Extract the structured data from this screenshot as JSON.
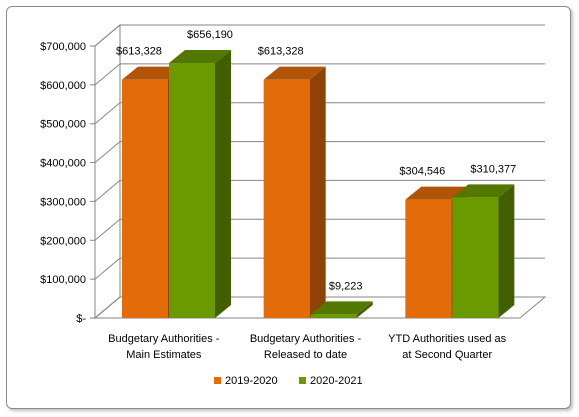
{
  "chart_data": {
    "type": "bar",
    "title": "",
    "xlabel": "",
    "ylabel": "",
    "ylim": [
      0,
      700000
    ],
    "y_ticks": [
      "$-",
      "$100,000",
      "$200,000",
      "$300,000",
      "$400,000",
      "$500,000",
      "$600,000",
      "$700,000"
    ],
    "categories": [
      [
        "Budgetary Authorities -",
        "Main Estimates"
      ],
      [
        "Budgetary Authorities -",
        "Released to date"
      ],
      [
        "YTD Authorities used as",
        "at Second Quarter"
      ]
    ],
    "series": [
      {
        "name": "2019-2020",
        "color": "#e36c09",
        "values": [
          613328,
          613328,
          304546
        ],
        "labels": [
          "$613,328",
          "$613,328",
          "$304,546"
        ]
      },
      {
        "name": "2020-2021",
        "color": "#6a9a00",
        "values": [
          656190,
          9223,
          310377
        ],
        "labels": [
          "$656,190",
          "$9,223",
          "$310,377"
        ]
      }
    ],
    "grid": true,
    "legend": "bottom",
    "style": "3d"
  }
}
